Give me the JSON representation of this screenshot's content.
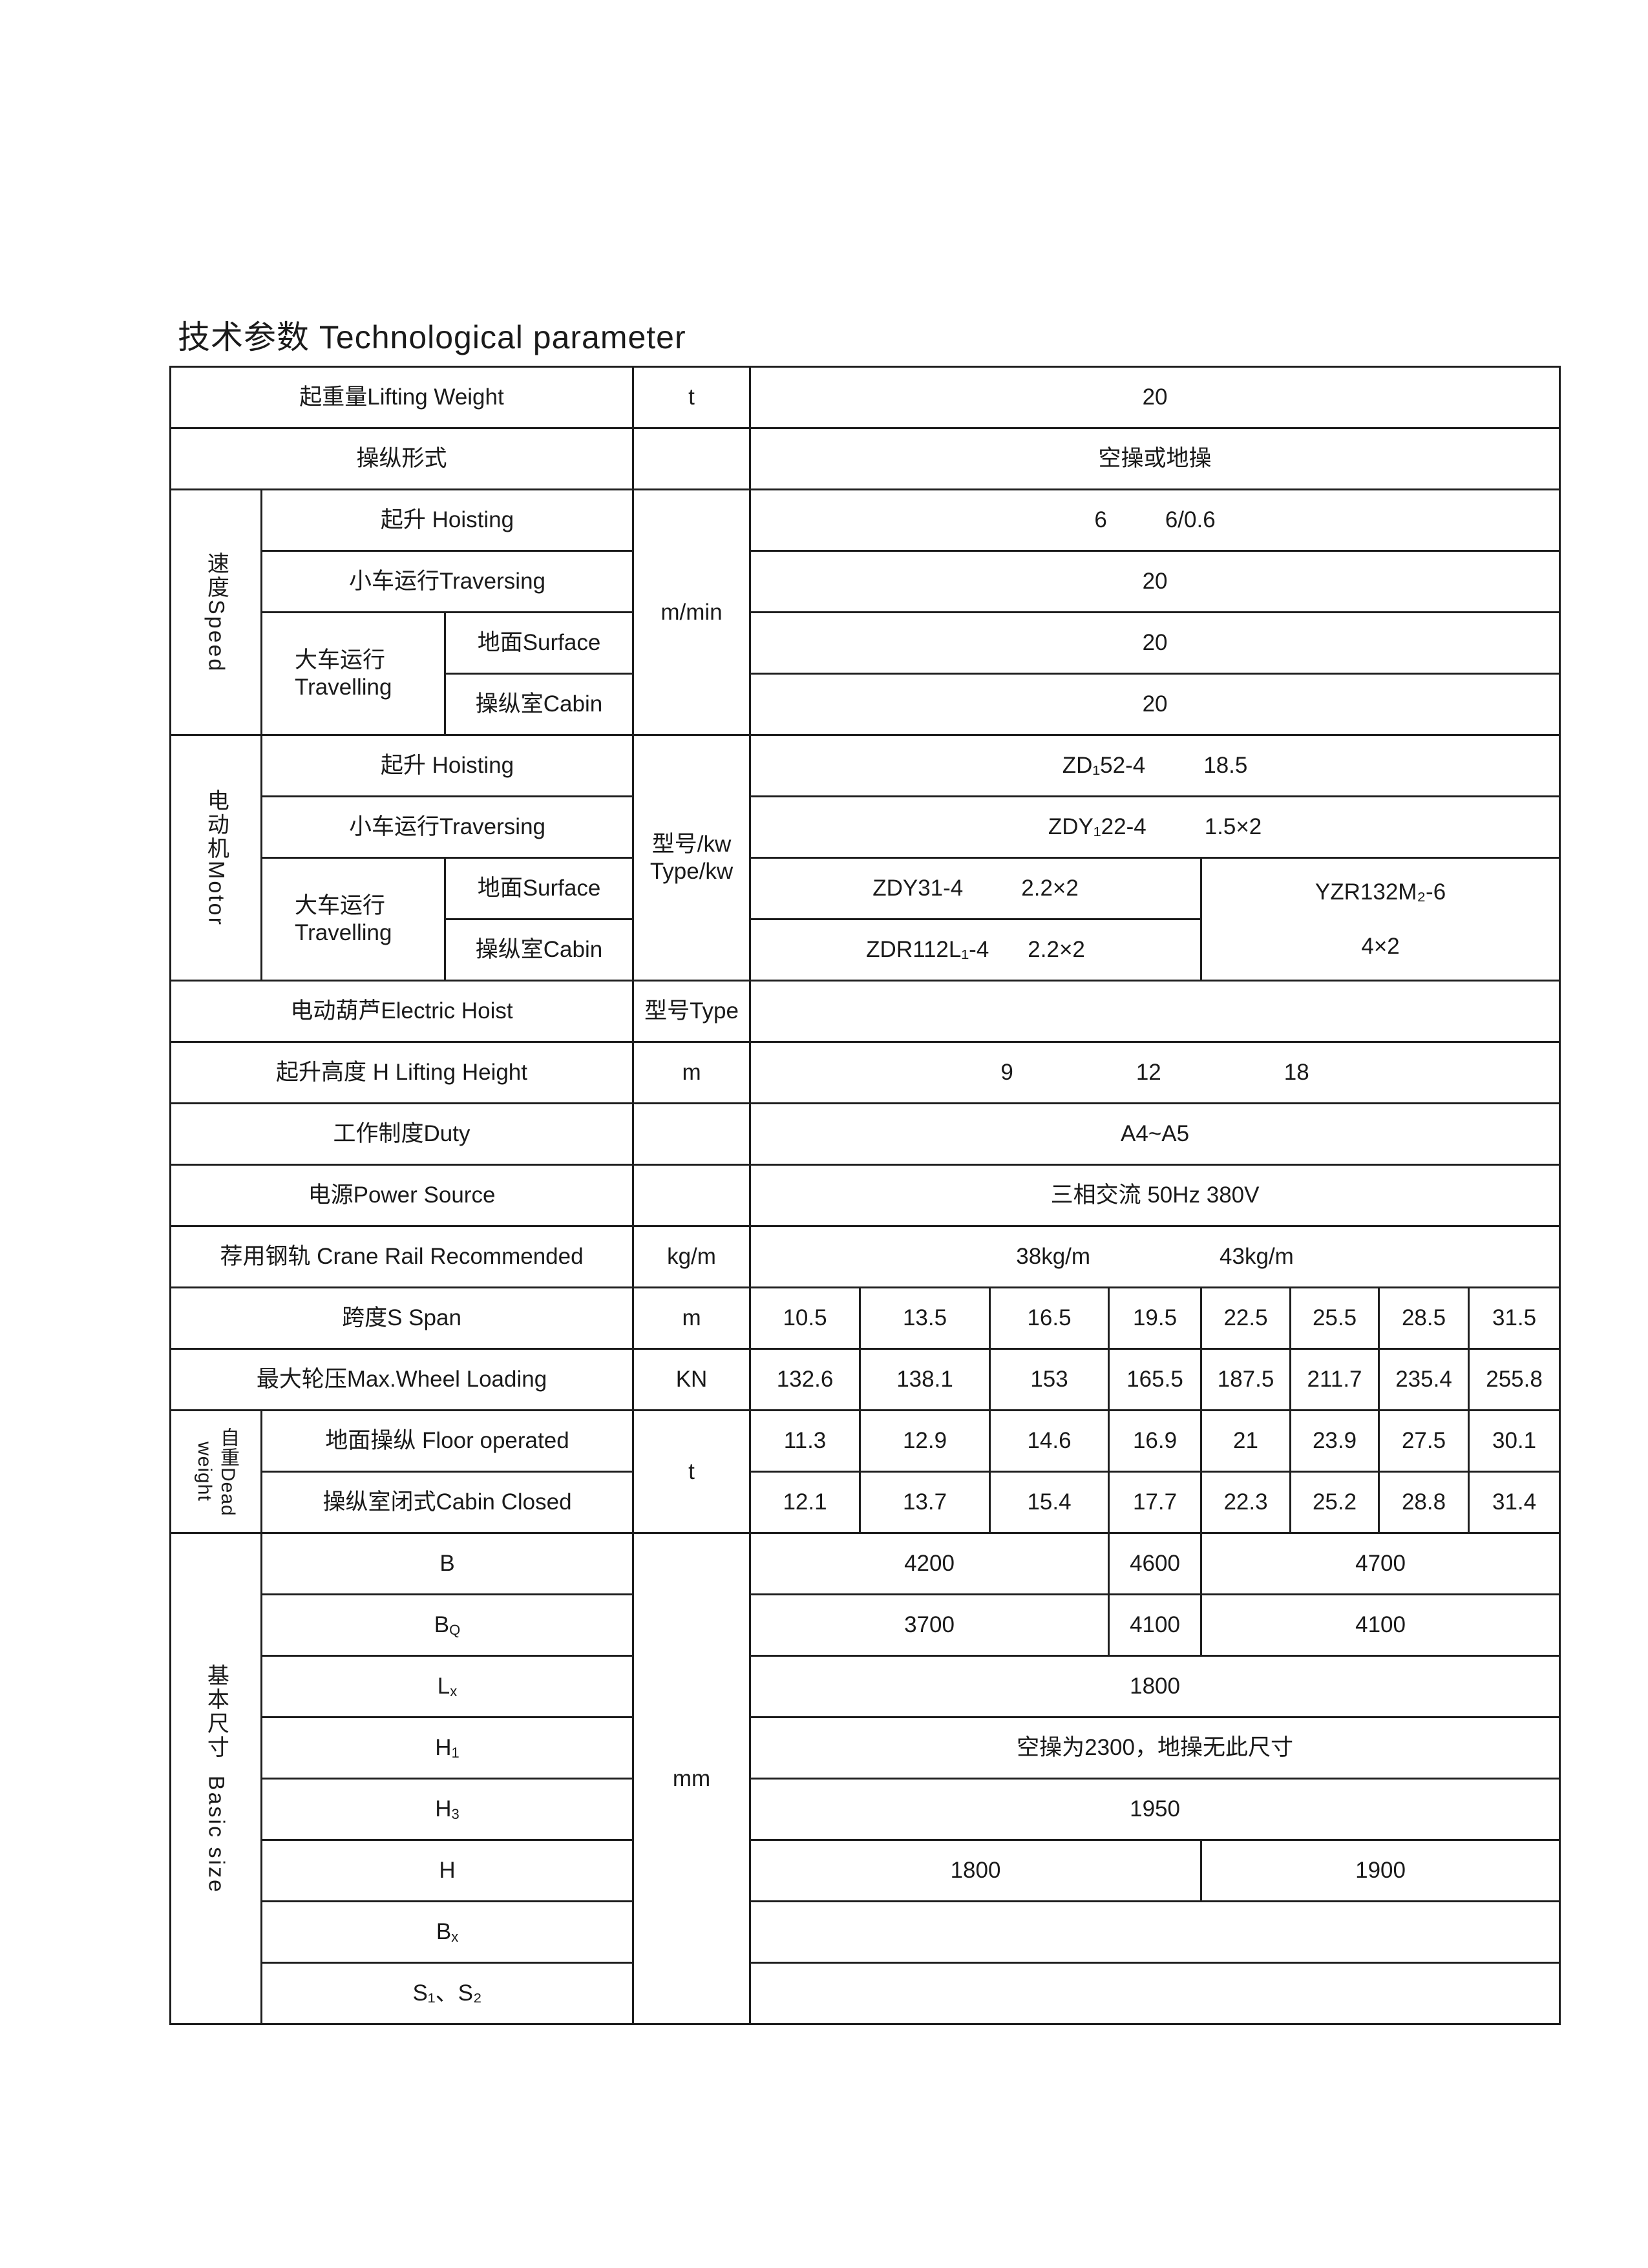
{
  "title": "技术参数 Technological parameter",
  "lifting_weight": {
    "label": "起重量Lifting Weight",
    "unit": "t",
    "value": "20"
  },
  "control_mode": {
    "label": "操纵形式",
    "value": "空操或地操"
  },
  "speed": {
    "group": "速度Speed",
    "unit": "m/min",
    "hoisting": {
      "label": "起升 Hoisting",
      "values": [
        "6",
        "6/0.6"
      ]
    },
    "traversing": {
      "label": "小车运行Traversing",
      "value": "20"
    },
    "travelling": {
      "label_cn": "大车运行",
      "label_en": "Travelling",
      "surface": {
        "label": "地面Surface",
        "value": "20"
      },
      "cabin": {
        "label": "操纵室Cabin",
        "value": "20"
      }
    }
  },
  "motor": {
    "group": "电动机Motor",
    "unit": "型号/kw",
    "unit_en": "Type/kw",
    "hoisting": {
      "label": "起升 Hoisting",
      "model": "ZD₁52-4",
      "power": "18.5"
    },
    "traversing": {
      "label": "小车运行Traversing",
      "model": "ZDY₁22-4",
      "power": "1.5×2"
    },
    "travelling": {
      "label_cn": "大车运行",
      "label_en": "Travelling",
      "surface": {
        "label": "地面Surface",
        "model": "ZDY31-4",
        "power": "2.2×2"
      },
      "cabin": {
        "label": "操纵室Cabin",
        "model": "ZDR112L₁-4",
        "power": "2.2×2"
      },
      "alt_model": "YZR132M₂-6",
      "alt_power": "4×2"
    }
  },
  "electric_hoist": {
    "label": "电动葫芦Electric Hoist",
    "unit": "型号Type",
    "value": ""
  },
  "lifting_height": {
    "label": "起升高度 H Lifting Height",
    "unit": "m",
    "values": [
      "9",
      "12",
      "18"
    ]
  },
  "duty": {
    "label": "工作制度Duty",
    "value": "A4~A5"
  },
  "power_source": {
    "label": "电源Power Source",
    "value": "三相交流 50Hz 380V"
  },
  "crane_rail": {
    "label": "荐用钢轨 Crane Rail Recommended",
    "unit": "kg/m",
    "values": [
      "38kg/m",
      "43kg/m"
    ]
  },
  "span": {
    "label": "跨度S Span",
    "unit": "m",
    "values": [
      "10.5",
      "13.5",
      "16.5",
      "19.5",
      "22.5",
      "25.5",
      "28.5",
      "31.5"
    ]
  },
  "wheel_loading": {
    "label": "最大轮压Max.Wheel Loading",
    "unit": "KN",
    "values": [
      "132.6",
      "138.1",
      "153",
      "165.5",
      "187.5",
      "211.7",
      "235.4",
      "255.8"
    ]
  },
  "dead_weight": {
    "group": "自重Dead weight",
    "unit": "t",
    "floor": {
      "label": "地面操纵 Floor operated",
      "values": [
        "11.3",
        "12.9",
        "14.6",
        "16.9",
        "21",
        "23.9",
        "27.5",
        "30.1"
      ]
    },
    "cabin": {
      "label": "操纵室闭式Cabin Closed",
      "values": [
        "12.1",
        "13.7",
        "15.4",
        "17.7",
        "22.3",
        "25.2",
        "28.8",
        "31.4"
      ]
    }
  },
  "basic_size": {
    "group": "基本尺寸  Basic size",
    "unit": "mm",
    "B": {
      "label": "B",
      "values": [
        "4200",
        "4600",
        "4700"
      ]
    },
    "BQ": {
      "label": "B",
      "sub": "Q",
      "values": [
        "3700",
        "4100",
        "4100"
      ]
    },
    "Lx": {
      "label": "L",
      "sub": "x",
      "value": "1800"
    },
    "H1": {
      "label": "H",
      "sub": "1",
      "value": "空操为2300，地操无此尺寸"
    },
    "H3": {
      "label": "H",
      "sub": "3",
      "value": "1950"
    },
    "H": {
      "label": "H",
      "values": [
        "1800",
        "1900"
      ]
    },
    "Bx": {
      "label": "B",
      "sub": "x",
      "value": ""
    },
    "S": {
      "label": "S₁、S₂",
      "value": ""
    }
  }
}
